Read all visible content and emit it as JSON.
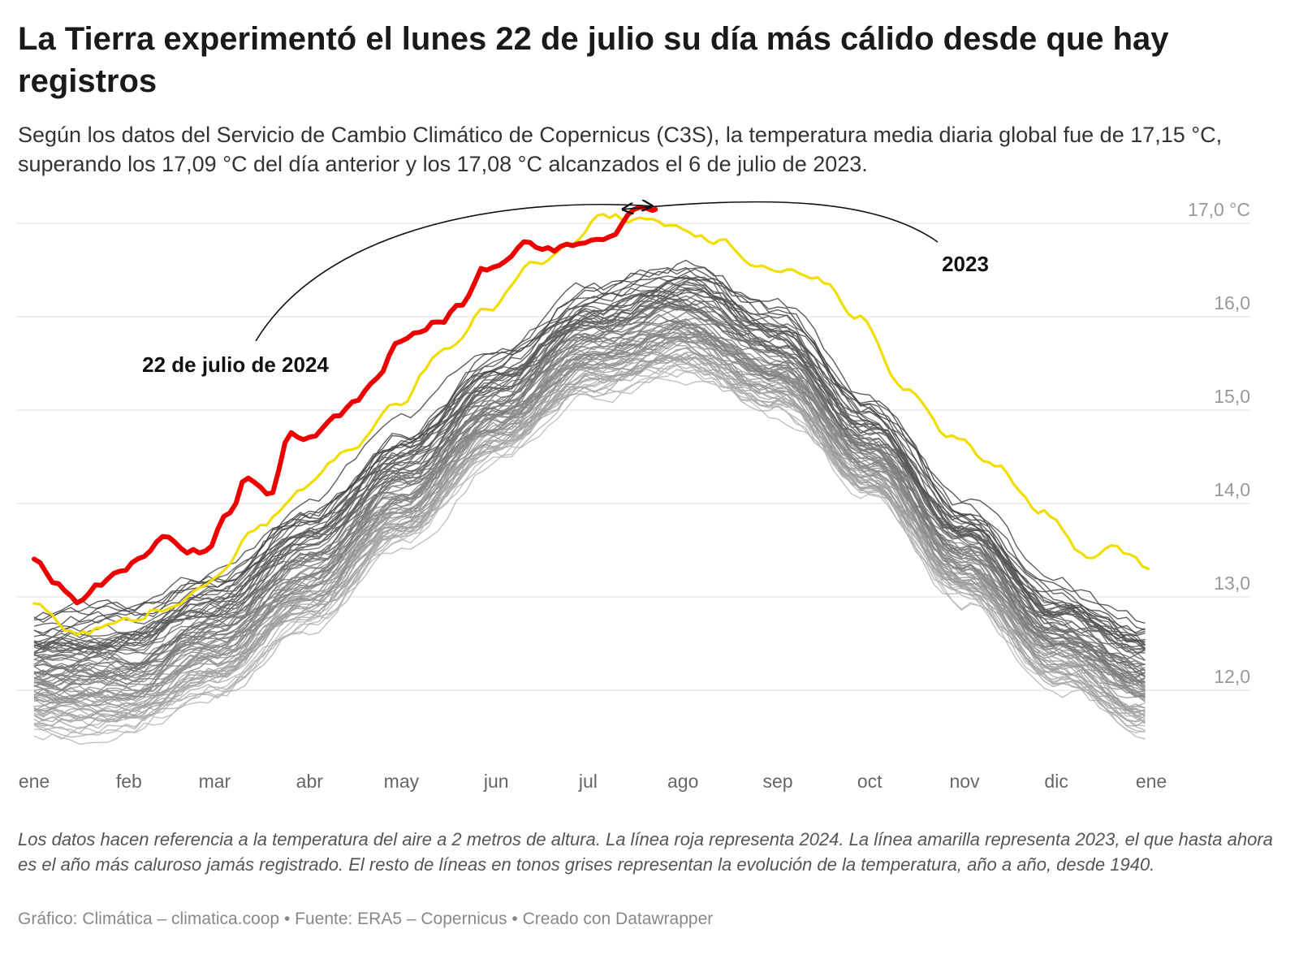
{
  "title": "La Tierra experimentó el lunes 22 de julio su día más cálido desde que hay registros",
  "subtitle": "Según los datos del Servicio de Cambio Climático de Copernicus (C3S), la temperatura media diaria global fue de 17,15 °C, superando los 17,09 °C del día anterior y los 17,08 °C alcanzados el 6 de julio de 2023.",
  "notes": "Los datos hacen referencia a la temperatura del aire a 2 metros de altura. La línea roja representa 2024. La línea amarilla representa 2023, el que hasta ahora es el año más caluroso jamás registrado. El resto de líneas en tonos grises representan la evolución de la temperatura, año a año, desde 1940.",
  "credit": "Gráfico: Climática – climatica.coop • Fuente: ERA5 – Copernicus • Creado con Datawrapper",
  "colors": {
    "year_2024": "#ee0000",
    "year_2023": "#f2dd00",
    "historical": "#555555",
    "grid": "#dddddd",
    "axis_text": "#999999"
  },
  "chart_data": {
    "type": "line",
    "x_unit": "mes",
    "x_ticks": [
      "ene",
      "feb",
      "mar",
      "abr",
      "may",
      "jun",
      "jul",
      "ago",
      "sep",
      "oct",
      "nov",
      "dic",
      "ene"
    ],
    "y_ticks": [
      {
        "value": 17,
        "label": "17,0 °C"
      },
      {
        "value": 16,
        "label": "16,0"
      },
      {
        "value": 15,
        "label": "15,0"
      },
      {
        "value": 14,
        "label": "14,0"
      },
      {
        "value": 13,
        "label": "13,0"
      },
      {
        "value": 12,
        "label": "12,0"
      }
    ],
    "ylim": [
      11.1,
      17.2
    ],
    "grid": true,
    "annotations": [
      {
        "label": "22 de julio de 2024",
        "target_day": 204,
        "target_value": 17.15
      },
      {
        "label": "2023",
        "target_day": 187,
        "target_value": 17.08
      }
    ],
    "series": [
      {
        "name": "2024",
        "role": "highlight-red",
        "x": [
          1,
          8,
          15,
          22,
          29,
          36,
          43,
          50,
          57,
          64,
          71,
          78,
          85,
          92,
          99,
          106,
          113,
          120,
          127,
          134,
          141,
          148,
          155,
          162,
          169,
          176,
          183,
          190,
          197,
          204
        ],
        "y": [
          13.4,
          13.1,
          12.95,
          13.1,
          13.25,
          13.45,
          13.65,
          13.5,
          13.5,
          13.85,
          14.3,
          14.15,
          14.75,
          14.7,
          14.95,
          15.15,
          15.3,
          15.7,
          15.8,
          15.95,
          16.15,
          16.5,
          16.6,
          16.75,
          16.7,
          16.75,
          16.85,
          16.9,
          17.09,
          17.15
        ]
      },
      {
        "name": "2023",
        "role": "highlight-yellow",
        "x": [
          1,
          15,
          30,
          45,
          59,
          75,
          90,
          105,
          120,
          135,
          150,
          165,
          176,
          187,
          199,
          210,
          225,
          241,
          256,
          271,
          286,
          301,
          315,
          330,
          345,
          355,
          365
        ],
        "y": [
          12.95,
          12.6,
          12.75,
          12.9,
          13.2,
          13.75,
          14.2,
          14.6,
          15.1,
          15.65,
          16.1,
          16.55,
          16.8,
          17.08,
          17.05,
          16.95,
          16.8,
          16.5,
          16.45,
          16.0,
          15.2,
          14.7,
          14.4,
          13.95,
          13.4,
          13.5,
          13.3
        ]
      }
    ],
    "historical_band": {
      "years": "1940–2022",
      "x": [
        1,
        31,
        60,
        91,
        121,
        152,
        182,
        213,
        244,
        274,
        305,
        335,
        365
      ],
      "low": [
        11.5,
        11.5,
        11.9,
        12.6,
        13.5,
        14.4,
        15.1,
        15.3,
        14.9,
        14.0,
        12.9,
        12.0,
        11.5
      ],
      "high": [
        12.8,
        12.9,
        13.3,
        14.0,
        14.8,
        15.6,
        16.3,
        16.6,
        16.1,
        15.1,
        14.0,
        13.1,
        12.7
      ]
    }
  }
}
